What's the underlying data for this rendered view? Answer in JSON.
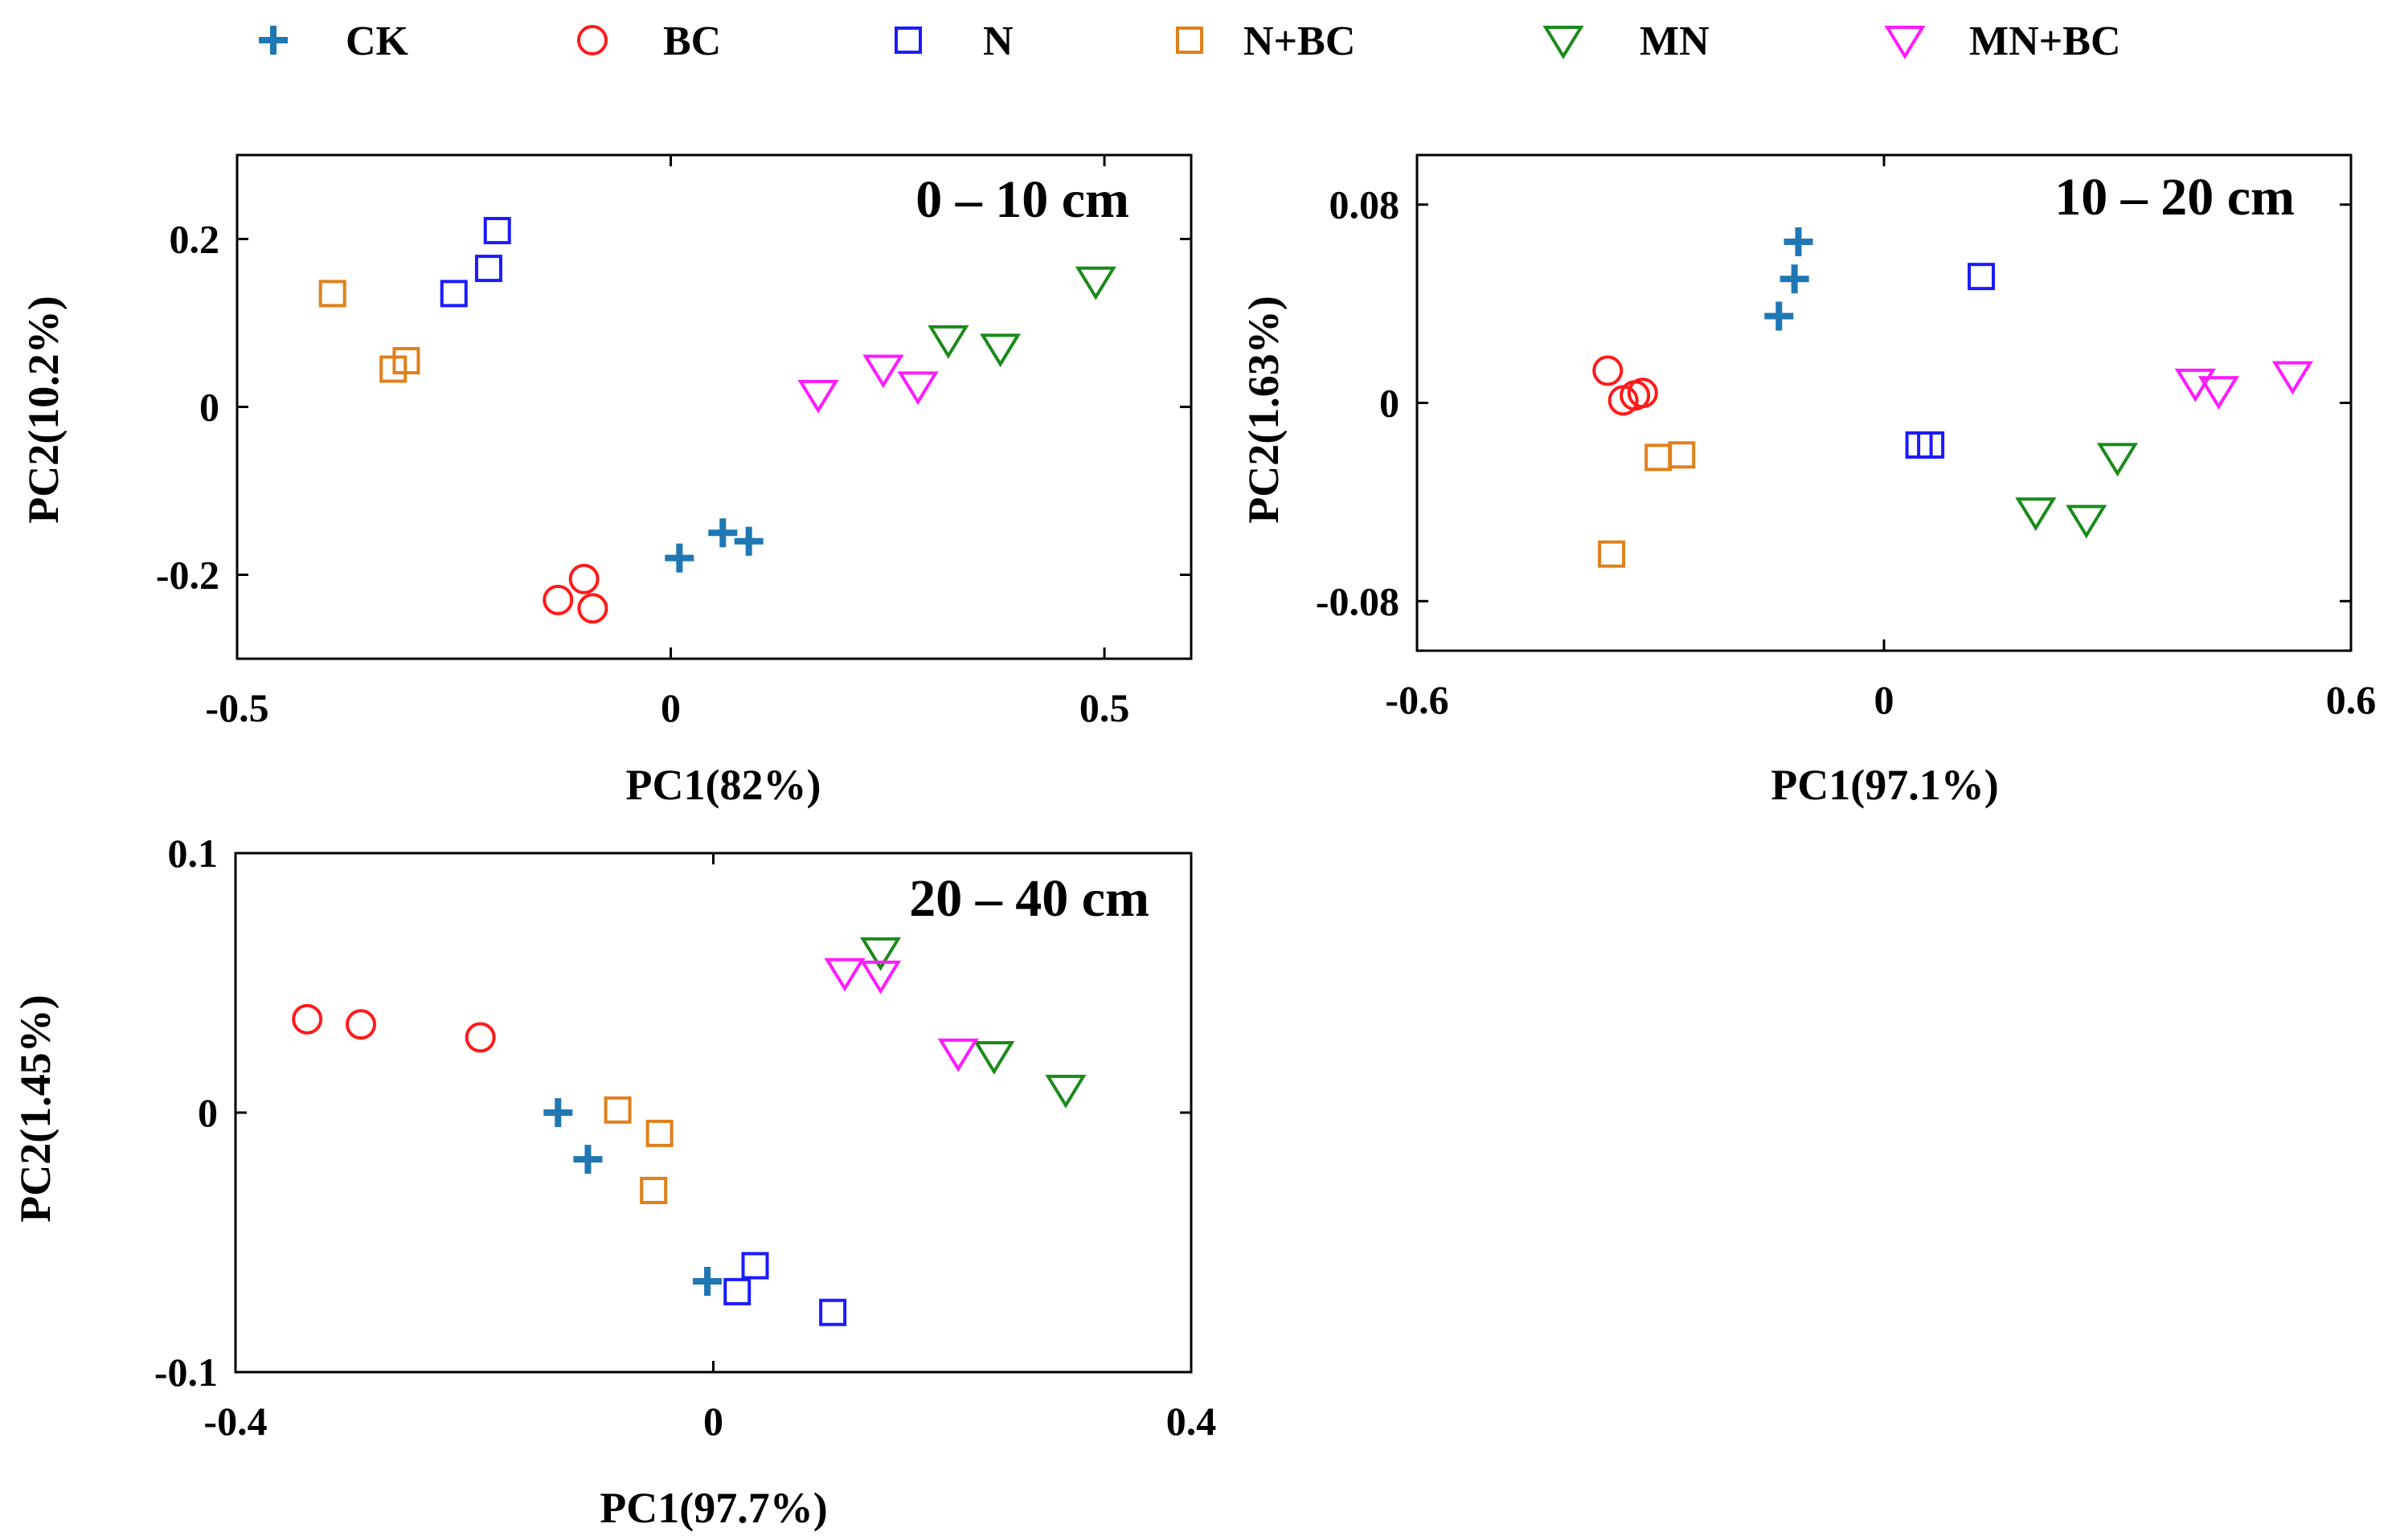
{
  "legend": [
    {
      "name": "CK",
      "marker": "plus",
      "color": "#1f77b4"
    },
    {
      "name": "BC",
      "marker": "circle",
      "color": "#ff1a1a"
    },
    {
      "name": "N",
      "marker": "square",
      "color": "#1a1aff"
    },
    {
      "name": "N+BC",
      "marker": "square",
      "color": "#e0801a"
    },
    {
      "name": "MN",
      "marker": "triangle-down",
      "color": "#1a8a1a"
    },
    {
      "name": "MN+BC",
      "marker": "triangle-down",
      "color": "#ff1aff"
    }
  ],
  "chart_data": [
    {
      "type": "scatter",
      "title": "0 – 10 cm",
      "xlabel": "PC1(82%)",
      "ylabel": "PC2(10.2%)",
      "xlim": [
        -0.5,
        0.6
      ],
      "ylim": [
        -0.3,
        0.3
      ],
      "xticks": [
        -0.5,
        0,
        0.5
      ],
      "xtick_labels": [
        "-0.5",
        "0",
        "0.5"
      ],
      "yticks": [
        -0.2,
        0,
        0.2
      ],
      "ytick_labels": [
        "-0.2",
        "0",
        "0.2"
      ],
      "series": [
        {
          "name": "CK",
          "x": [
            0.01,
            0.06,
            0.09
          ],
          "y": [
            -0.18,
            -0.15,
            -0.16
          ]
        },
        {
          "name": "BC",
          "x": [
            -0.13,
            -0.1,
            -0.09
          ],
          "y": [
            -0.23,
            -0.205,
            -0.24
          ]
        },
        {
          "name": "N",
          "x": [
            -0.25,
            -0.21,
            -0.2
          ],
          "y": [
            0.135,
            0.165,
            0.21
          ]
        },
        {
          "name": "N+BC",
          "x": [
            -0.39,
            -0.32,
            -0.305
          ],
          "y": [
            0.135,
            0.045,
            0.055
          ]
        },
        {
          "name": "MN",
          "x": [
            0.32,
            0.38,
            0.49
          ],
          "y": [
            0.08,
            0.07,
            0.15
          ]
        },
        {
          "name": "MN+BC",
          "x": [
            0.17,
            0.245,
            0.285
          ],
          "y": [
            0.015,
            0.045,
            0.025
          ]
        }
      ]
    },
    {
      "type": "scatter",
      "title": "10 – 20 cm",
      "xlabel": "PC1(97.1%)",
      "ylabel": "PC2(1.63%)",
      "xlim": [
        -0.6,
        0.6
      ],
      "ylim": [
        -0.1,
        0.1
      ],
      "xticks": [
        -0.6,
        0,
        0.6
      ],
      "xtick_labels": [
        "-0.6",
        "0",
        "0.6"
      ],
      "yticks": [
        -0.08,
        0,
        0.08
      ],
      "ytick_labels": [
        "-0.08",
        "0",
        "0.08"
      ],
      "series": [
        {
          "name": "CK",
          "x": [
            -0.135,
            -0.115,
            -0.11
          ],
          "y": [
            0.035,
            0.05,
            0.065
          ]
        },
        {
          "name": "BC",
          "x": [
            -0.355,
            -0.335,
            -0.32,
            -0.31
          ],
          "y": [
            0.013,
            0.001,
            0.003,
            0.004
          ]
        },
        {
          "name": "N",
          "x": [
            0.045,
            0.06,
            0.125
          ],
          "y": [
            -0.017,
            -0.017,
            0.051
          ]
        },
        {
          "name": "N+BC",
          "x": [
            -0.35,
            -0.29,
            -0.26
          ],
          "y": [
            -0.061,
            -0.022,
            -0.021
          ]
        },
        {
          "name": "MN",
          "x": [
            0.195,
            0.26,
            0.3
          ],
          "y": [
            -0.044,
            -0.047,
            -0.022
          ]
        },
        {
          "name": "MN+BC",
          "x": [
            0.4,
            0.43,
            0.525
          ],
          "y": [
            0.008,
            0.005,
            0.011
          ]
        }
      ]
    },
    {
      "type": "scatter",
      "title": "20 – 40 cm",
      "xlabel": "PC1(97.7%)",
      "ylabel": "PC2(1.45%)",
      "xlim": [
        -0.4,
        0.4
      ],
      "ylim": [
        -0.1,
        0.1
      ],
      "xticks": [
        -0.4,
        0,
        0.4
      ],
      "xtick_labels": [
        "-0.4",
        "0",
        "0.4"
      ],
      "yticks": [
        -0.1,
        0,
        0.1
      ],
      "ytick_labels": [
        "-0.1",
        "0",
        "0.1"
      ],
      "series": [
        {
          "name": "CK",
          "x": [
            -0.13,
            -0.105,
            -0.005
          ],
          "y": [
            0.0,
            -0.018,
            -0.065
          ]
        },
        {
          "name": "BC",
          "x": [
            -0.34,
            -0.295,
            -0.195
          ],
          "y": [
            0.036,
            0.034,
            0.029
          ]
        },
        {
          "name": "N",
          "x": [
            0.02,
            0.035,
            0.1
          ],
          "y": [
            -0.069,
            -0.059,
            -0.077
          ]
        },
        {
          "name": "N+BC",
          "x": [
            -0.08,
            -0.045,
            -0.05
          ],
          "y": [
            0.001,
            -0.008,
            -0.03
          ]
        },
        {
          "name": "MN",
          "x": [
            0.14,
            0.235,
            0.295
          ],
          "y": [
            0.062,
            0.022,
            0.009
          ]
        },
        {
          "name": "MN+BC",
          "x": [
            0.11,
            0.14,
            0.205
          ],
          "y": [
            0.054,
            0.053,
            0.023
          ]
        }
      ]
    }
  ]
}
